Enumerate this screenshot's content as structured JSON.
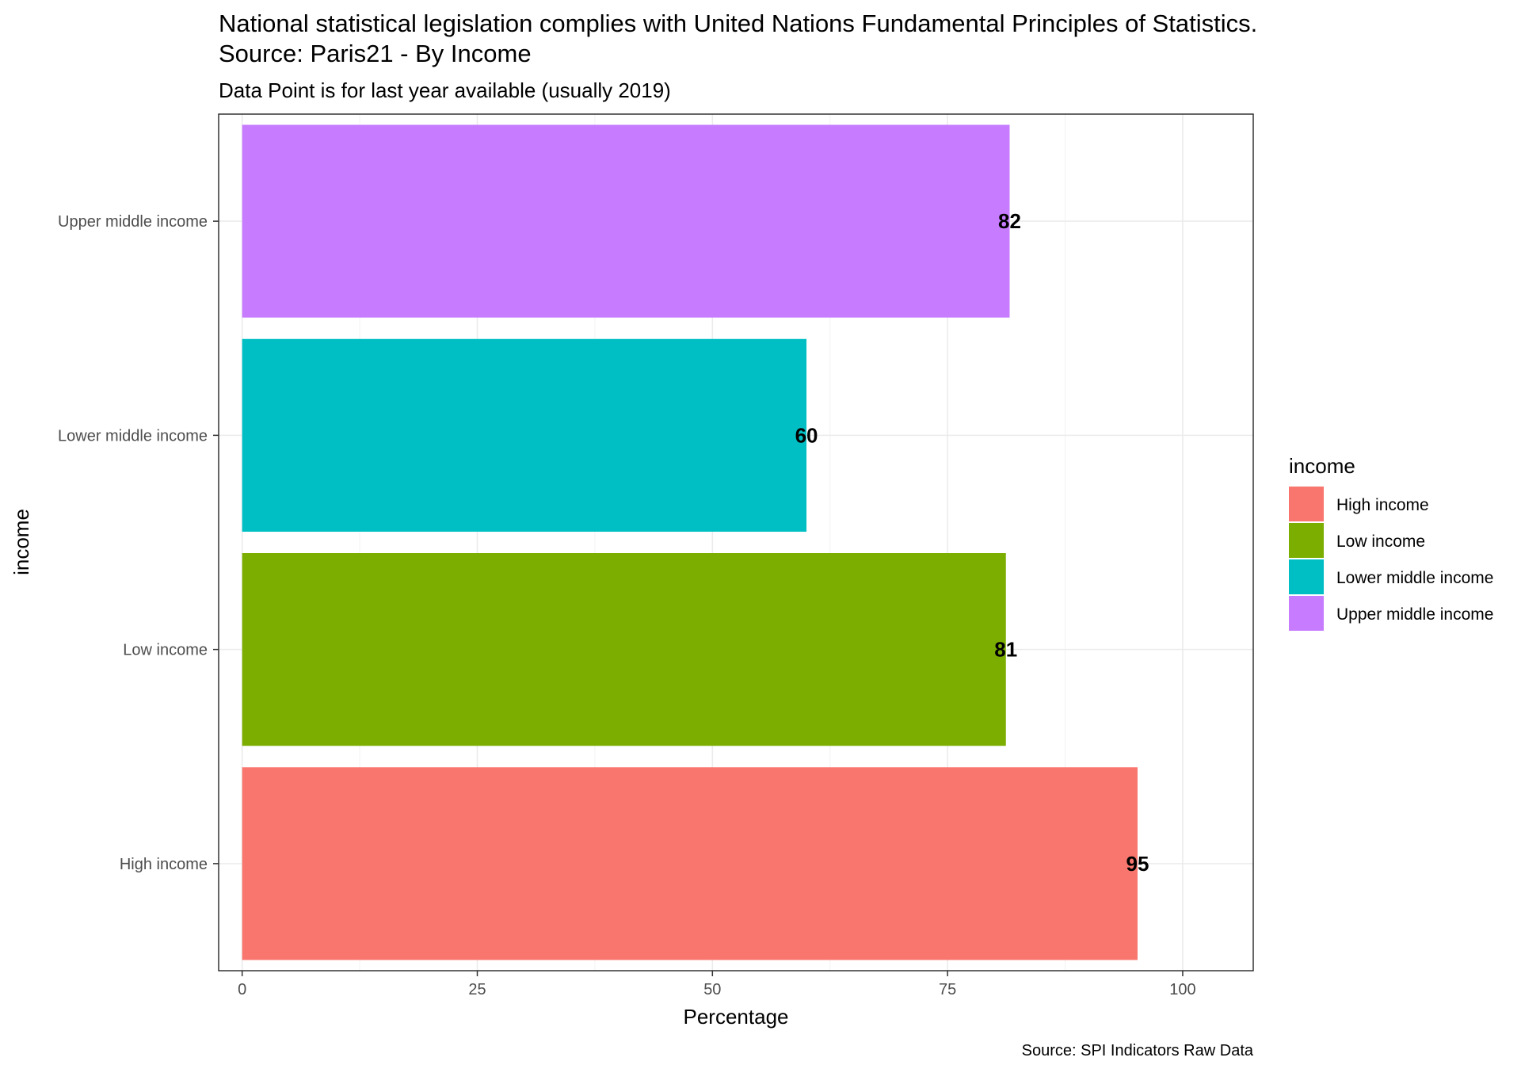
{
  "chart_data": {
    "type": "bar",
    "orientation": "horizontal",
    "title": "National statistical legislation complies with United Nations Fundamental Principles of Statistics.",
    "title_line2": "Source: Paris21 - By Income",
    "subtitle": "Data Point is for last year available (usually 2019)",
    "caption": "Source: SPI Indicators Raw Data",
    "xlabel": "Percentage",
    "ylabel": "income",
    "xlim": [
      -2.5,
      107.5
    ],
    "x_ticks": [
      0,
      25,
      50,
      75,
      100
    ],
    "grid": true,
    "categories": [
      "High income",
      "Low income",
      "Lower middle income",
      "Upper middle income"
    ],
    "values": [
      95.2,
      81.2,
      60.0,
      81.6
    ],
    "data_labels": [
      "95",
      "81",
      "60",
      "82"
    ],
    "colors": [
      "#F8766D",
      "#7CAE00",
      "#00BFC4",
      "#C77CFF"
    ],
    "legend": {
      "title": "income",
      "position": "right",
      "entries": [
        "High income",
        "Low income",
        "Lower middle income",
        "Upper middle income"
      ]
    }
  }
}
